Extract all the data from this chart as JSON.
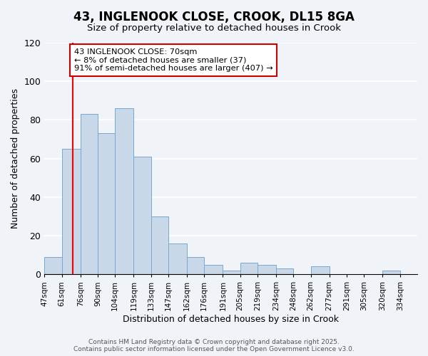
{
  "title": "43, INGLENOOK CLOSE, CROOK, DL15 8GA",
  "subtitle": "Size of property relative to detached houses in Crook",
  "xlabel": "Distribution of detached houses by size in Crook",
  "ylabel": "Number of detached properties",
  "bin_edges": [
    47,
    61,
    76,
    90,
    104,
    119,
    133,
    147,
    162,
    176,
    191,
    205,
    219,
    234,
    248,
    262,
    277,
    291,
    305,
    320,
    334,
    348
  ],
  "bar_heights": [
    9,
    65,
    83,
    73,
    86,
    61,
    30,
    16,
    9,
    5,
    2,
    6,
    5,
    3,
    0,
    4,
    0,
    0,
    0,
    2,
    0
  ],
  "bar_color": "#c8d8e8",
  "bar_edge_color": "#7aa8cc",
  "red_line_x": 70,
  "ylim": [
    0,
    120
  ],
  "annotation_text": "43 INGLENOOK CLOSE: 70sqm\n← 8% of detached houses are smaller (37)\n91% of semi-detached houses are larger (407) →",
  "annotation_box_color": "#ffffff",
  "annotation_box_edge": "#cc0000",
  "footer_line1": "Contains HM Land Registry data © Crown copyright and database right 2025.",
  "footer_line2": "Contains public sector information licensed under the Open Government Licence v3.0.",
  "background_color": "#f0f4f8",
  "grid_color": "#ffffff",
  "tick_positions": [
    47,
    61,
    76,
    90,
    104,
    119,
    133,
    147,
    162,
    176,
    191,
    205,
    219,
    234,
    248,
    262,
    277,
    291,
    305,
    320,
    334
  ],
  "tick_labels": [
    "47sqm",
    "61sqm",
    "76sqm",
    "90sqm",
    "104sqm",
    "119sqm",
    "133sqm",
    "147sqm",
    "162sqm",
    "176sqm",
    "191sqm",
    "205sqm",
    "219sqm",
    "234sqm",
    "248sqm",
    "262sqm",
    "277sqm",
    "291sqm",
    "305sqm",
    "320sqm",
    "334sqm"
  ]
}
